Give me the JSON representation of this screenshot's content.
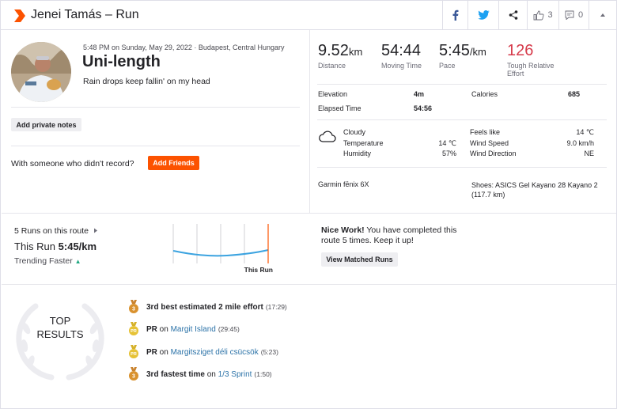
{
  "header": {
    "title": "Jenei Tamás – Run",
    "kudos_count": "3",
    "comments_count": "0",
    "brand_color": "#fc5200"
  },
  "activity": {
    "date": "5:48 PM on Sunday, May 29, 2022 · Budapest, Central Hungary",
    "name": "Uni-length",
    "description": "Rain drops keep fallin' on my head",
    "private_notes_label": "Add private notes",
    "with_someone_text": "With someone who didn't record?",
    "add_friends_label": "Add Friends"
  },
  "stats": {
    "distance": {
      "value": "9.52",
      "unit": "km",
      "label": "Distance"
    },
    "moving_time": {
      "value": "54:44",
      "label": "Moving Time"
    },
    "pace": {
      "value": "5:45",
      "unit": "/km",
      "label": "Pace"
    },
    "effort": {
      "value": "126",
      "label": "Tough Relative Effort",
      "color": "#d63a4a"
    }
  },
  "details": {
    "elevation_label": "Elevation",
    "elevation_value": "4m",
    "calories_label": "Calories",
    "calories_value": "685",
    "elapsed_label": "Elapsed Time",
    "elapsed_value": "54:56"
  },
  "weather": {
    "icon": "cloud-icon",
    "condition": "Cloudy",
    "temperature_label": "Temperature",
    "temperature_value": "14 ℃",
    "humidity_label": "Humidity",
    "humidity_value": "57%",
    "feels_like_label": "Feels like",
    "feels_like_value": "14 ℃",
    "wind_speed_label": "Wind Speed",
    "wind_speed_value": "9.0 km/h",
    "wind_direction_label": "Wind Direction",
    "wind_direction_value": "NE"
  },
  "gear": {
    "device": "Garmin fēnix 6X",
    "shoes": "Shoes: ASICS Gel Kayano 28 Kayano 2 (117.7 km)"
  },
  "route": {
    "count_text": "5 Runs on this route",
    "this_run_prefix": "This Run",
    "this_run_pace": "5:45/km",
    "trending_text": "Trending Faster",
    "chart_label": "This Run",
    "nice_bold": "Nice Work!",
    "nice_text": "You have completed this route 5 times. Keep it up!",
    "matched_button": "View Matched Runs"
  },
  "top_results": {
    "heading_line1": "TOP",
    "heading_line2": "RESULTS",
    "items": [
      {
        "medal": "3",
        "bold": "3rd best estimated 2 mile effort",
        "mid": "",
        "link": "",
        "time": "(17:29)"
      },
      {
        "medal": "PR",
        "bold": "PR",
        "mid": " on ",
        "link": "Margit Island",
        "time": "(29:45)"
      },
      {
        "medal": "PR",
        "bold": "PR",
        "mid": " on ",
        "link": "Margitsziget déli csücsök",
        "time": "(5:23)"
      },
      {
        "medal": "3",
        "bold": "3rd fastest time",
        "mid": " on ",
        "link": "1/3 Sprint",
        "time": "(1:50)"
      }
    ]
  }
}
